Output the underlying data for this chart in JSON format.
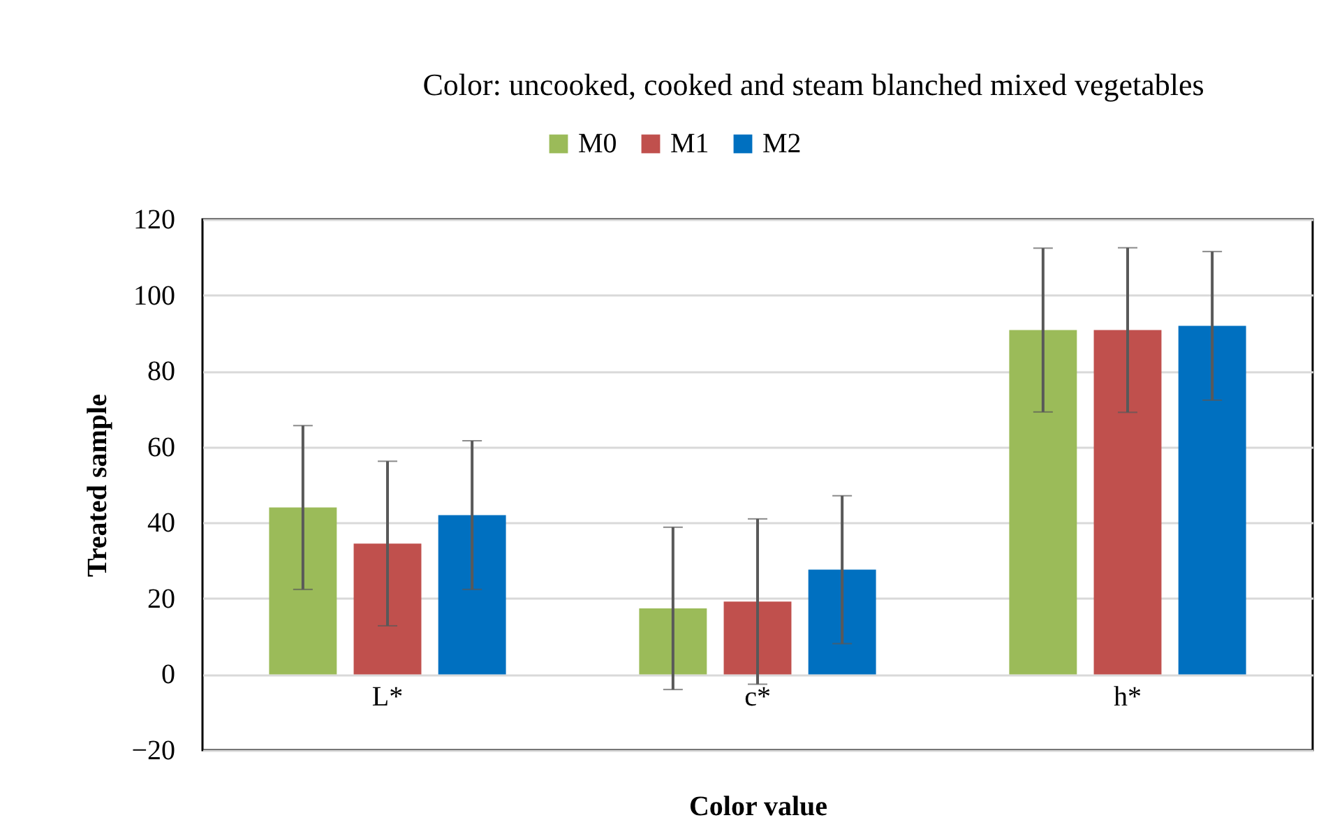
{
  "chart_data": {
    "type": "bar",
    "title": "Color: uncooked, cooked and steam blanched mixed vegetables",
    "xlabel": "Color value",
    "ylabel": "Treated sample",
    "categories": [
      "L*",
      "c*",
      "h*"
    ],
    "series": [
      {
        "name": "M0",
        "color": "#9bbb59",
        "values": [
          44.0,
          17.4,
          90.8
        ],
        "errors": [
          21.6,
          21.4,
          21.6
        ]
      },
      {
        "name": "M1",
        "color": "#c0504d",
        "values": [
          34.5,
          19.2,
          90.8
        ],
        "errors": [
          21.7,
          21.8,
          21.7
        ]
      },
      {
        "name": "M2",
        "color": "#0070c0",
        "values": [
          42.0,
          27.6,
          91.9
        ],
        "errors": [
          19.6,
          19.5,
          19.6
        ]
      }
    ],
    "ylim": [
      -20,
      120
    ],
    "yticks": [
      -20,
      0,
      20,
      40,
      60,
      80,
      100,
      120
    ],
    "grid": "y",
    "legend": "top"
  }
}
